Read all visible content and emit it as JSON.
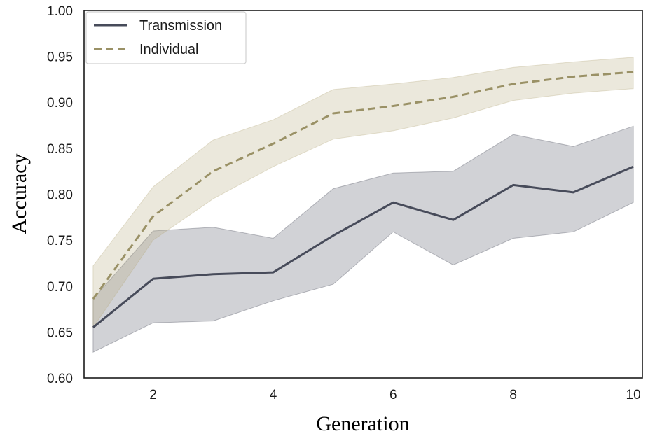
{
  "chart_data": {
    "type": "line",
    "title": "",
    "xlabel": "Generation",
    "ylabel": "Accuracy",
    "xlim": [
      0.85,
      10.15
    ],
    "ylim": [
      0.6,
      1.0
    ],
    "x_ticks": [
      2,
      4,
      6,
      8,
      10
    ],
    "y_ticks": [
      0.6,
      0.65,
      0.7,
      0.75,
      0.8,
      0.85,
      0.9,
      0.95,
      1.0
    ],
    "x_tick_labels": [
      "2",
      "4",
      "6",
      "8",
      "10"
    ],
    "y_tick_labels": [
      "0.60",
      "0.65",
      "0.70",
      "0.75",
      "0.80",
      "0.85",
      "0.90",
      "0.95",
      "1.00"
    ],
    "grid": false,
    "legend_position": "top-left",
    "x": [
      1,
      2,
      3,
      4,
      5,
      6,
      7,
      8,
      9,
      10
    ],
    "series": [
      {
        "name": "Transmission",
        "style": "solid",
        "color": "#474b5a",
        "band_color": "#474b5a",
        "values": [
          0.655,
          0.708,
          0.713,
          0.715,
          0.755,
          0.791,
          0.772,
          0.81,
          0.802,
          0.83
        ],
        "lower": [
          0.628,
          0.66,
          0.662,
          0.684,
          0.702,
          0.759,
          0.723,
          0.752,
          0.759,
          0.791
        ],
        "upper": [
          0.686,
          0.76,
          0.764,
          0.752,
          0.806,
          0.823,
          0.825,
          0.865,
          0.852,
          0.874
        ]
      },
      {
        "name": "Individual",
        "style": "dashed",
        "color": "#9a9166",
        "band_color": "#b8ac82",
        "values": [
          0.686,
          0.776,
          0.825,
          0.855,
          0.888,
          0.896,
          0.906,
          0.92,
          0.928,
          0.933
        ],
        "lower": [
          0.655,
          0.75,
          0.795,
          0.83,
          0.86,
          0.869,
          0.883,
          0.902,
          0.91,
          0.915
        ],
        "upper": [
          0.722,
          0.808,
          0.859,
          0.881,
          0.914,
          0.92,
          0.927,
          0.938,
          0.944,
          0.949
        ]
      }
    ]
  }
}
